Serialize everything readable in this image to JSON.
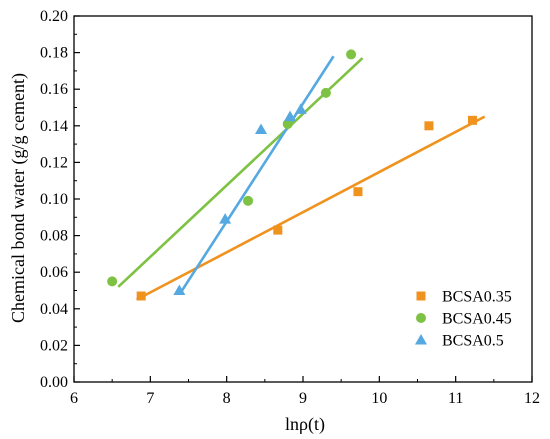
{
  "chart_data": {
    "type": "scatter",
    "title": "",
    "xlabel": "lnρ(t)",
    "ylabel": "Chemical bond water (g/g cement)",
    "xlim": [
      6,
      12
    ],
    "ylim": [
      0,
      0.2
    ],
    "xticks": [
      6,
      7,
      8,
      9,
      10,
      11,
      12
    ],
    "yticks": [
      0.0,
      0.02,
      0.04,
      0.06,
      0.08,
      0.1,
      0.12,
      0.14,
      0.16,
      0.18,
      0.2
    ],
    "grid": false,
    "legend_position": "bottom-right",
    "series": [
      {
        "name": "BCSA0.35",
        "marker": "square",
        "color": "#f0921e",
        "points": [
          [
            6.88,
            0.047
          ],
          [
            8.67,
            0.083
          ],
          [
            9.72,
            0.104
          ],
          [
            10.65,
            0.14
          ],
          [
            11.22,
            0.143
          ]
        ],
        "fit_line": [
          [
            6.82,
            0.045
          ],
          [
            11.38,
            0.145
          ]
        ]
      },
      {
        "name": "BCSA0.45",
        "marker": "circle",
        "color": "#7dc242",
        "points": [
          [
            6.5,
            0.055
          ],
          [
            8.28,
            0.099
          ],
          [
            8.8,
            0.141
          ],
          [
            9.3,
            0.158
          ],
          [
            9.63,
            0.179
          ]
        ],
        "fit_line": [
          [
            6.58,
            0.052
          ],
          [
            9.78,
            0.177
          ]
        ]
      },
      {
        "name": "BCSA0.5",
        "marker": "triangle",
        "color": "#56a9e0",
        "points": [
          [
            7.38,
            0.05
          ],
          [
            7.98,
            0.089
          ],
          [
            8.45,
            0.138
          ],
          [
            8.83,
            0.145
          ],
          [
            8.97,
            0.149
          ]
        ],
        "fit_line": [
          [
            7.4,
            0.049
          ],
          [
            9.4,
            0.178
          ]
        ]
      }
    ]
  }
}
